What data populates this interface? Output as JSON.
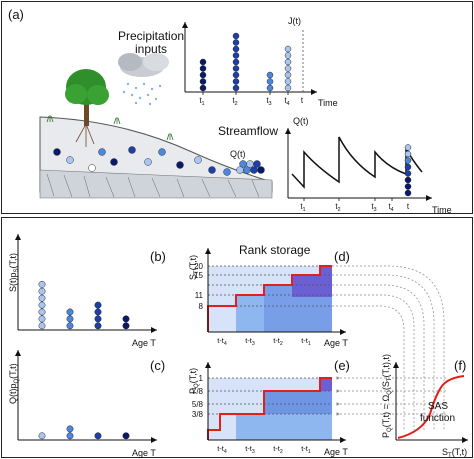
{
  "panels": {
    "a": "(a)",
    "b": "(b)",
    "c": "(c)",
    "d": "(d)",
    "e": "(e)",
    "f": "(f)"
  },
  "top": {
    "precip_title_line1": "Precipitation",
    "precip_title_line2": "inputs",
    "precip_ylabel": "J(t)",
    "precip_xlabel": "Time",
    "precip_ticks": [
      "t",
      "t",
      "t",
      "t"
    ],
    "precip_tick_subs": [
      "1",
      "2",
      "3",
      "4"
    ],
    "precip_now": "t",
    "stream_title": "Streamflow",
    "stream_ylabel": "Q(t)",
    "stream_xlabel": "Time",
    "stream_ticks": [
      "t",
      "t",
      "t",
      "t"
    ],
    "stream_tick_subs": [
      "1",
      "2",
      "3",
      "4"
    ],
    "stream_now": "t",
    "outlet_label": "Q(t)"
  },
  "bottom": {
    "b_ylabel": "S(t)p",
    "b_ylabel_sub": "S",
    "b_ylabel_rest": "(T,t)",
    "c_ylabel": "Q(t)p",
    "c_ylabel_sub": "Q",
    "c_ylabel_rest": "(T,t)",
    "d_ylabel": "S",
    "d_ylabel_sub": "T",
    "d_ylabel_rest": "(T,t)",
    "e_ylabel": "P",
    "e_ylabel_sub": "Q",
    "e_ylabel_rest": "(T,t)",
    "age_label": "Age T",
    "rank_storage": "Rank storage",
    "d_yticks": [
      "20",
      "15",
      "11",
      "8"
    ],
    "e_yticks": [
      "1",
      "7/8",
      "5/8",
      "3/8"
    ],
    "age_ticks": [
      "t-t",
      "t-t",
      "t-t",
      "t-t"
    ],
    "age_tick_subs": [
      "4",
      "3",
      "2",
      "1"
    ],
    "f_ylabel": "P",
    "f_ylabel_sub": "Q",
    "f_ylabel_rest": "(T,t) = Ω",
    "f_ylabel_sub2": "Q",
    "f_ylabel_rest2": "(S",
    "f_ylabel_sub3": "T",
    "f_ylabel_rest3": "(T,t),t)",
    "f_xlabel": "S",
    "f_xlabel_sub": "T",
    "f_xlabel_rest": "(T,t)",
    "sas_line1": "SAS",
    "sas_line2": "function"
  },
  "colors": {
    "c1": "#0a1a6b",
    "c2": "#1e3fa8",
    "c3": "#4d86e0",
    "c4": "#a9c6f2",
    "red": "#e0201a",
    "light_fill": "#d7e3f8",
    "mid_fill": "#8fb7ef",
    "dark_fill": "#4a6fd6",
    "purple_fill": "#6a5fd3"
  }
}
